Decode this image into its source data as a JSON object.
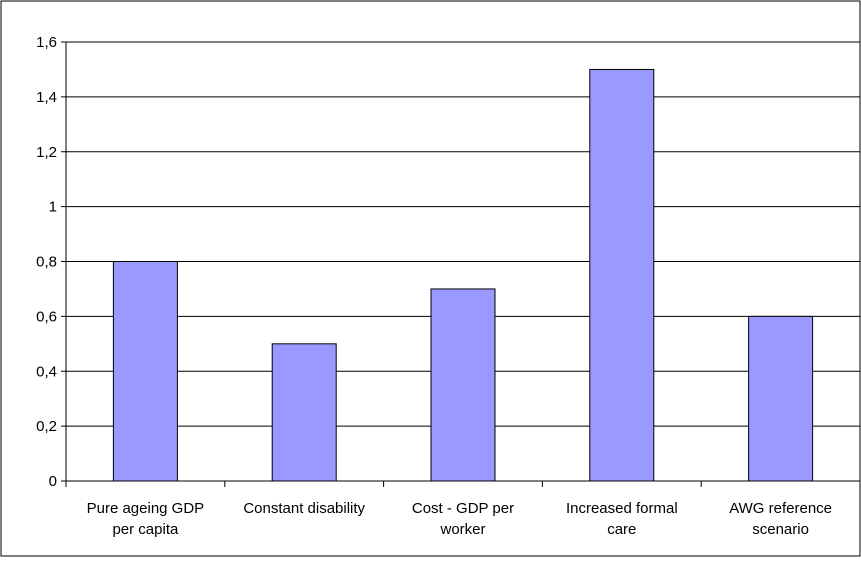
{
  "chart_data": {
    "type": "bar",
    "title": "",
    "xlabel": "",
    "ylabel": "",
    "categories": [
      [
        "Pure ageing GDP",
        "per capita"
      ],
      [
        "Constant disability"
      ],
      [
        "Cost - GDP per",
        "worker"
      ],
      [
        "Increased formal",
        "care"
      ],
      [
        "AWG reference",
        "scenario"
      ]
    ],
    "values": [
      0.8,
      0.5,
      0.7,
      1.5,
      0.6
    ],
    "ylim": [
      0,
      1.6
    ],
    "yticks": [
      0,
      0.2,
      0.4,
      0.6,
      0.8,
      1,
      1.2,
      1.4,
      1.6
    ],
    "ytick_labels": [
      "0",
      "0,2",
      "0,4",
      "0,6",
      "0,8",
      "1",
      "1,2",
      "1,4",
      "1,6"
    ],
    "grid": true,
    "legend": "none",
    "colors": {
      "bar_fill": "#9999ff",
      "bar_stroke": "#000000",
      "grid": "#000000",
      "axis": "#000000",
      "frame": "#000000",
      "background": "#ffffff"
    }
  }
}
